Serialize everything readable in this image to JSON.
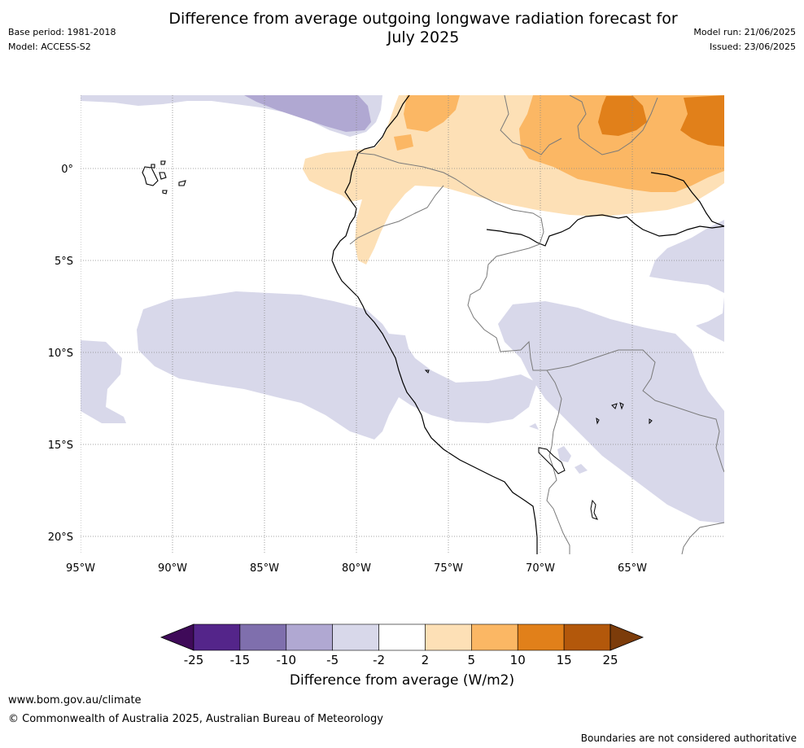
{
  "title": "Difference from average outgoing longwave radiation forecast for July 2025",
  "title_line1": "Difference from average outgoing longwave radiation forecast for",
  "title_line2": "July 2025",
  "base_period": "Base period: 1981-2018",
  "model": "Model: ACCESS-S2",
  "model_run": "Model run: 21/06/2025",
  "issued": "Issued: 23/06/2025",
  "map": {
    "region": "South America - Peru / Ecuador / Bolivia",
    "lon_labels": [
      "95°W",
      "90°W",
      "85°W",
      "80°W",
      "75°W",
      "70°W",
      "65°W"
    ],
    "lat_labels": [
      "0°",
      "5°S",
      "10°S",
      "15°S",
      "20°S"
    ],
    "gridlines": "dotted"
  },
  "colorbar": {
    "title": "Difference from average (W/m2)",
    "ticks": [
      "-25",
      "-15",
      "-10",
      "-5",
      "-2",
      "2",
      "5",
      "10",
      "15",
      "25"
    ],
    "colors": [
      "#3f0a59",
      "#54258a",
      "#7f6fad",
      "#b0a8d2",
      "#d8d8ea",
      "#ffffff",
      "#fde0b6",
      "#fbb764",
      "#e1801a",
      "#b3580b",
      "#7c3c0a"
    ]
  },
  "footer": {
    "url": "www.bom.gov.au/climate",
    "copyright": "© Commonwealth of Australia 2025, Australian Bureau of Meteorology",
    "disclaimer": "Boundaries are not considered authoritative"
  }
}
